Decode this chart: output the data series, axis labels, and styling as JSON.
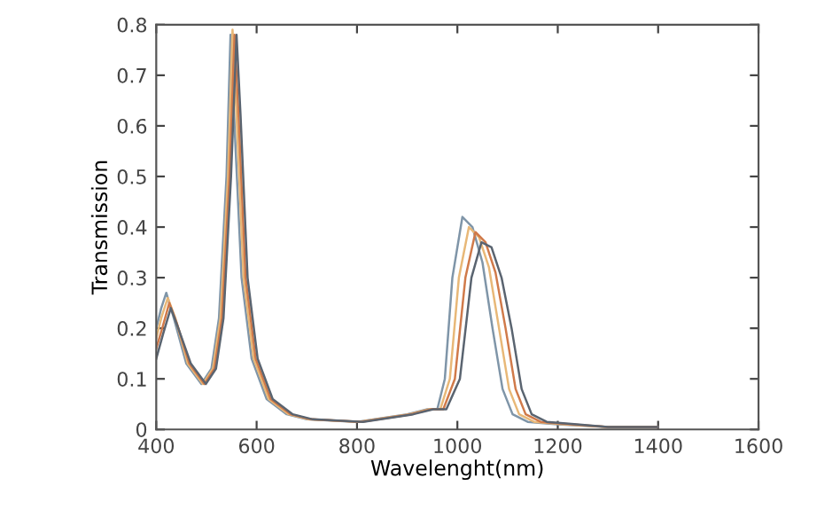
{
  "chart_data": {
    "type": "line",
    "xlabel": "Wavelenght(nm)",
    "ylabel": "Transmission",
    "xlim": [
      400,
      1600
    ],
    "ylim": [
      0,
      0.8
    ],
    "xticks": [
      400,
      600,
      800,
      1000,
      1200,
      1400,
      1600
    ],
    "yticks": [
      0,
      0.1,
      0.2,
      0.3,
      0.4,
      0.5,
      0.6,
      0.7,
      0.8
    ],
    "grid": false,
    "legend": false,
    "marker": "none",
    "line_style": "solid",
    "series": [
      {
        "color": "#7f95a8",
        "x": [
          400,
          410,
          420,
          435,
          460,
          490,
          510,
          525,
          540,
          548,
          556,
          570,
          590,
          620,
          660,
          700,
          800,
          900,
          940,
          960,
          975,
          990,
          1010,
          1030,
          1050,
          1070,
          1090,
          1110,
          1140,
          1200,
          1300,
          1400
        ],
        "values": [
          0.2,
          0.24,
          0.27,
          0.22,
          0.13,
          0.09,
          0.12,
          0.22,
          0.5,
          0.78,
          0.6,
          0.3,
          0.14,
          0.06,
          0.03,
          0.02,
          0.015,
          0.03,
          0.04,
          0.04,
          0.1,
          0.3,
          0.42,
          0.4,
          0.33,
          0.2,
          0.08,
          0.03,
          0.015,
          0.01,
          0.005,
          0.005
        ]
      },
      {
        "color": "#e8b878",
        "x": [
          400,
          410,
          423,
          438,
          463,
          493,
          513,
          528,
          543,
          552,
          560,
          574,
          594,
          624,
          664,
          704,
          804,
          904,
          944,
          966,
          985,
          1003,
          1023,
          1043,
          1063,
          1083,
          1103,
          1123,
          1153,
          1213,
          1300,
          1400
        ],
        "values": [
          0.18,
          0.22,
          0.26,
          0.22,
          0.13,
          0.09,
          0.12,
          0.22,
          0.5,
          0.79,
          0.62,
          0.3,
          0.14,
          0.06,
          0.03,
          0.02,
          0.015,
          0.03,
          0.04,
          0.04,
          0.1,
          0.3,
          0.4,
          0.38,
          0.32,
          0.2,
          0.08,
          0.03,
          0.015,
          0.01,
          0.005,
          0.005
        ]
      },
      {
        "color": "#d07a4a",
        "x": [
          400,
          412,
          426,
          441,
          466,
          496,
          516,
          531,
          546,
          556,
          564,
          578,
          598,
          628,
          668,
          708,
          808,
          908,
          948,
          972,
          995,
          1016,
          1036,
          1056,
          1076,
          1096,
          1116,
          1136,
          1166,
          1226,
          1300,
          1400
        ],
        "values": [
          0.16,
          0.2,
          0.25,
          0.21,
          0.13,
          0.09,
          0.12,
          0.22,
          0.5,
          0.78,
          0.62,
          0.3,
          0.14,
          0.06,
          0.03,
          0.02,
          0.015,
          0.03,
          0.04,
          0.04,
          0.1,
          0.3,
          0.39,
          0.37,
          0.31,
          0.2,
          0.08,
          0.03,
          0.015,
          0.01,
          0.005,
          0.005
        ]
      },
      {
        "color": "#5a6470",
        "x": [
          400,
          414,
          429,
          444,
          469,
          499,
          519,
          534,
          549,
          560,
          568,
          582,
          602,
          632,
          672,
          712,
          812,
          912,
          952,
          978,
          1005,
          1028,
          1048,
          1068,
          1088,
          1108,
          1128,
          1148,
          1178,
          1238,
          1300,
          1400
        ],
        "values": [
          0.14,
          0.19,
          0.24,
          0.2,
          0.13,
          0.09,
          0.12,
          0.22,
          0.5,
          0.78,
          0.62,
          0.3,
          0.14,
          0.06,
          0.03,
          0.02,
          0.015,
          0.03,
          0.04,
          0.04,
          0.1,
          0.3,
          0.37,
          0.36,
          0.3,
          0.2,
          0.08,
          0.03,
          0.015,
          0.01,
          0.005,
          0.005
        ]
      }
    ]
  }
}
